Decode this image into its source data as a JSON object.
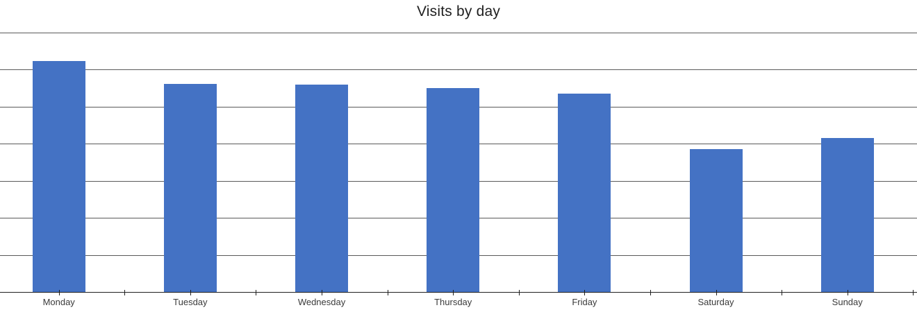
{
  "chart": {
    "title": "Visits by day"
  },
  "chart_data": {
    "type": "bar",
    "title": "Visits by day",
    "categories": [
      "Monday",
      "Tuesday",
      "Wednesday",
      "Thursday",
      "Friday",
      "Saturday",
      "Sunday"
    ],
    "values": [
      6.22,
      5.6,
      5.58,
      5.5,
      5.35,
      3.85,
      4.15
    ],
    "xlabel": "",
    "ylabel": "",
    "ylim": [
      0,
      7
    ],
    "gridline_interval": 1,
    "y_tick_labels_visible": false,
    "grid": "horizontal",
    "legend": "none",
    "colors": {
      "bar_fill": "#4472C4",
      "gridline": "#595959",
      "axis": "#1f1f1f",
      "tick": "#1f1f1f",
      "x_label_text": "#3a3a3a",
      "title_text": "#1f1f1f",
      "background": "#ffffff"
    }
  }
}
